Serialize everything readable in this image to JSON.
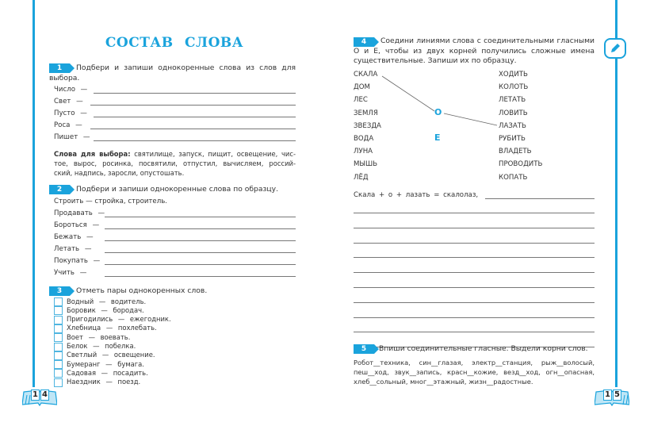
{
  "left_page": {
    "title": "СОСТАВ СЛОВА",
    "page_number": [
      "1",
      "4"
    ],
    "task1": {
      "number": "1",
      "instruction_line1": "Подбери и запиши однокоренные слова из слов для",
      "instruction_line2": "выбора.",
      "rows": [
        "Число —",
        "Свет —",
        "Пусто —",
        "Роса —",
        "Пишет —"
      ],
      "choices_label": "Слова для выбора:",
      "choices_line1": " святилище, запуск, пищит, освещение, чис-",
      "choices_line2": "тое, вырос, росинка, посвятили, отпустил, вычисляем, россий-",
      "choices_line3": "ский, надпись, заросли, опустошать."
    },
    "task2": {
      "number": "2",
      "instruction": "Подбери и запиши однокоренные слова по образцу.",
      "example": "Строить — стройка, строитель.",
      "rows": [
        "Продавать —",
        "Бороться —",
        "Бежать —",
        "Летать —",
        "Покупать —",
        "Учить —"
      ]
    },
    "task3": {
      "number": "3",
      "instruction": "Отметь пары однокоренных слов.",
      "items": [
        "Водный — водитель.",
        "Боровик — бородач.",
        "Пригодились — ежегодник.",
        "Хлебница — похлебать.",
        "Воет — воевать.",
        "Белок — побелка.",
        "Светлый — освещение.",
        "Бумеранг — бумага.",
        "Садовая — посадить.",
        "Наездник — поезд."
      ]
    }
  },
  "right_page": {
    "page_number": [
      "1",
      "5"
    ],
    "pencil_icon": "pencil-icon",
    "task4": {
      "number": "4",
      "line1": "Соедини линиями слова с соединительными гласными",
      "line2": "О и Е, чтобы из двух корней получились сложные имена",
      "line3": "существительные. Запиши их по образцу.",
      "left_words": [
        "СКАЛА",
        "ДОМ",
        "ЛЕС",
        "ЗЕМЛЯ",
        "ЗВЕЗДА",
        "ВОДА",
        "ЛУНА",
        "МЫШЬ",
        "ЛЁД"
      ],
      "vowels": [
        "О",
        "Е"
      ],
      "right_words": [
        "ХОДИТЬ",
        "КОЛОТЬ",
        "ЛЕТАТЬ",
        "ЛОВИТЬ",
        "ЛАЗАТЬ",
        "РУБИТЬ",
        "ВЛАДЕТЬ",
        "ПРОВОДИТЬ",
        "КОПАТЬ"
      ],
      "example": "Скала + о + лазать = скалолаз,"
    },
    "task5": {
      "number": "5",
      "instruction": "Впиши соединительные гласные. Выдели корни слов.",
      "line1": "Робот__техника,  син__глазая,  электр__станция,  рыж__волосый,",
      "line2": "пеш__ход, звук__запись, красн__кожие, везд__ход, огн__опасная,",
      "line3": "хлеб__сольный, мног__этажный, жизн__радостные."
    }
  },
  "colors": {
    "accent": "#1aa3dc"
  }
}
